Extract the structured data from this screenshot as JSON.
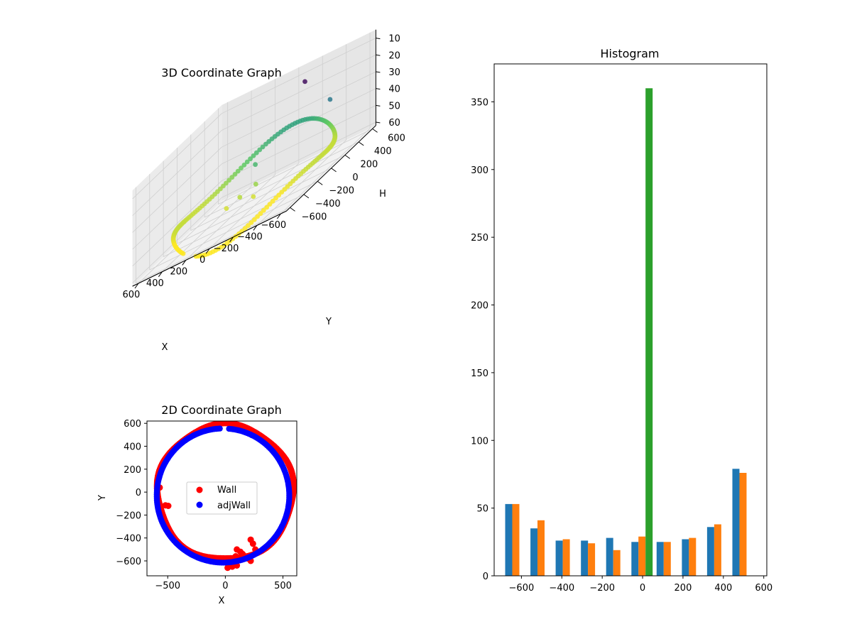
{
  "chart_data": [
    {
      "type": "scatter",
      "title": "3D Coordinate Graph",
      "xlabel": "X",
      "ylabel": "Y",
      "zlabel": "H",
      "xlim": [
        -650,
        650
      ],
      "ylim": [
        -650,
        650
      ],
      "zlim": [
        5,
        62
      ],
      "z_inverted": true,
      "x_ticks": [
        "−600",
        "−400",
        "−200",
        "0",
        "200",
        "400",
        "600"
      ],
      "y_ticks": [
        "−600",
        "−400",
        "−200",
        "0",
        "200",
        "400",
        "600"
      ],
      "z_ticks": [
        "10",
        "20",
        "30",
        "40",
        "50",
        "60"
      ],
      "colormap": "viridis",
      "series": [
        {
          "description": "ring of points",
          "shape": "circle",
          "radius": 590,
          "h_range": [
            40,
            62
          ]
        },
        {
          "points": [
            [
              -150,
              480,
              12
            ],
            [
              -420,
              380,
              28
            ],
            [
              60,
              120,
              40
            ],
            [
              -60,
              -80,
              48
            ],
            [
              40,
              -140,
              50
            ],
            [
              -120,
              -220,
              52
            ],
            [
              130,
              -180,
              52
            ]
          ]
        }
      ],
      "grid": true
    },
    {
      "type": "scatter",
      "title": "2D Coordinate Graph",
      "xlabel": "X",
      "ylabel": "Y",
      "xlim": [
        -680,
        620
      ],
      "ylim": [
        -730,
        620
      ],
      "x_ticks": [
        "−500",
        "0",
        "500"
      ],
      "y_ticks": [
        "600",
        "400",
        "200",
        "0",
        "−200",
        "−400",
        "−600"
      ],
      "series": [
        {
          "name": "Wall",
          "color": "#ff0000",
          "shape": "circle",
          "radius": 590,
          "extra_points": [
            [
              -570,
              40
            ],
            [
              -520,
              -115
            ],
            [
              -495,
              -120
            ],
            [
              220,
              -415
            ],
            [
              240,
              -450
            ],
            [
              100,
              -500
            ],
            [
              130,
              -520
            ],
            [
              150,
              -540
            ],
            [
              170,
              -560
            ],
            [
              90,
              -560
            ],
            [
              260,
              -500
            ],
            [
              200,
              -580
            ],
            [
              220,
              -600
            ],
            [
              20,
              -660
            ],
            [
              60,
              -650
            ],
            [
              100,
              -640
            ]
          ]
        },
        {
          "name": "adjWall",
          "color": "#0000ff",
          "shape": "circle",
          "radius": 575,
          "x_offset": -20,
          "y_offset": -30
        }
      ],
      "legend": "center"
    },
    {
      "type": "bar",
      "title": "Histogram",
      "xlim": [
        -735,
        615
      ],
      "ylim": [
        0,
        378
      ],
      "x_ticks": [
        "−600",
        "−400",
        "−200",
        "0",
        "200",
        "400",
        "600"
      ],
      "y_ticks": [
        "0",
        "50",
        "100",
        "150",
        "200",
        "250",
        "300",
        "350"
      ],
      "bin_centers": [
        -628,
        -503,
        -378,
        -253,
        -128,
        -3,
        122,
        247,
        372,
        497
      ],
      "series": [
        {
          "color": "#1f77b4",
          "values": [
            53,
            35,
            26,
            26,
            28,
            25,
            25,
            27,
            36,
            79
          ]
        },
        {
          "color": "#ff7f0e",
          "values": [
            53,
            41,
            27,
            24,
            19,
            29,
            25,
            28,
            38,
            76
          ]
        },
        {
          "color": "#2ca02c",
          "values": [
            0,
            0,
            0,
            0,
            0,
            360,
            0,
            0,
            0,
            0
          ]
        }
      ]
    }
  ]
}
